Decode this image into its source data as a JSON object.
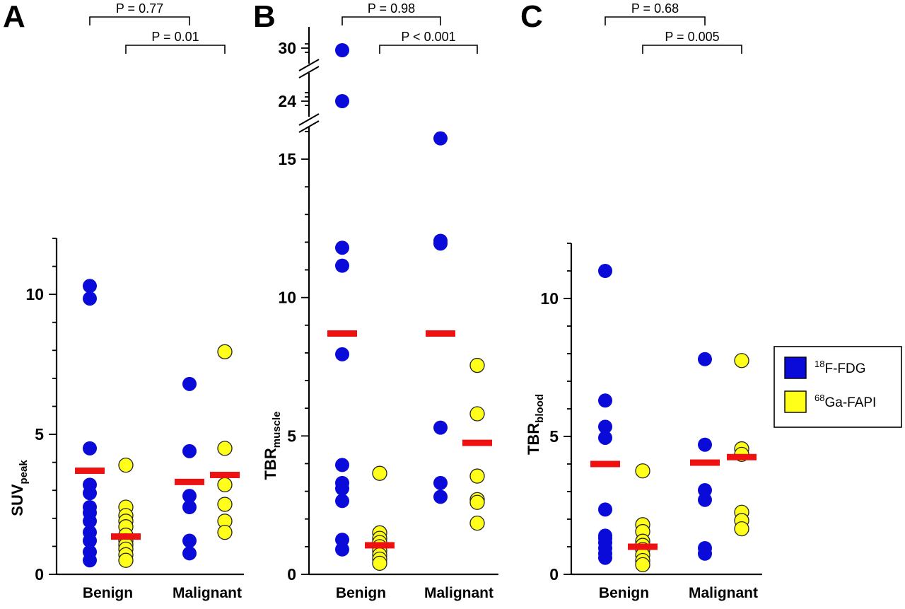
{
  "colors": {
    "fdg": "#0b0bd9",
    "fapi": "#ffff1a",
    "median": "#ee1111",
    "axis": "#000000"
  },
  "legend": {
    "placement": "right",
    "items": [
      {
        "iso": "18",
        "label": "F-FDG",
        "color": "#0b0bd9"
      },
      {
        "iso": "68",
        "label": "Ga-FAPI",
        "color": "#ffff1a"
      }
    ]
  },
  "chart_data": [
    {
      "type": "scatter",
      "panel": "A",
      "ylabel_main": "SUV",
      "ylabel_sub": "peak",
      "ylim": [
        0,
        12
      ],
      "yticks": [
        "0",
        "5",
        "10"
      ],
      "categories": [
        "Benign",
        "Malignant"
      ],
      "series": [
        {
          "name": "18F-FDG",
          "group": "Benign",
          "values": [
            10.3,
            9.85,
            4.5,
            3.2,
            2.9,
            2.4,
            2.2,
            1.9,
            1.5,
            1.2,
            0.8,
            0.5
          ],
          "median": 3.7
        },
        {
          "name": "68Ga-FAPI",
          "group": "Benign",
          "values": [
            3.9,
            2.4,
            2.1,
            1.9,
            1.7,
            1.4,
            1.2,
            1.05,
            0.9,
            0.7,
            0.5
          ],
          "median": 1.35
        },
        {
          "name": "18F-FDG",
          "group": "Malignant",
          "values": [
            6.8,
            4.4,
            2.8,
            2.4,
            1.2,
            0.75
          ],
          "median": 3.3
        },
        {
          "name": "68Ga-FAPI",
          "group": "Malignant",
          "values": [
            7.95,
            4.5,
            3.2,
            2.5,
            1.9,
            1.5
          ],
          "median": 3.55
        }
      ],
      "pvalues": [
        {
          "label": "P = 0.77",
          "from": "Benign 18F-FDG",
          "to": "Malignant 18F-FDG"
        },
        {
          "label": "P = 0.01",
          "from": "Benign 68Ga-FAPI",
          "to": "Malignant 68Ga-FAPI"
        }
      ]
    },
    {
      "type": "scatter",
      "panel": "B",
      "ylabel_main": "TBR",
      "ylabel_sub": "muscle",
      "ylim": [
        0,
        16.5
      ],
      "yticks": [
        "0",
        "5",
        "10",
        "15"
      ],
      "axis_break": {
        "upper_ticks": [
          "24",
          "30"
        ]
      },
      "categories": [
        "Benign",
        "Malignant"
      ],
      "series": [
        {
          "name": "18F-FDG",
          "group": "Benign",
          "values": [
            29.5,
            24,
            11.8,
            11.15,
            7.95,
            3.95,
            3.3,
            3.1,
            2.65,
            1.25,
            0.9
          ],
          "median": 8.7
        },
        {
          "name": "68Ga-FAPI",
          "group": "Benign",
          "values": [
            3.65,
            1.5,
            1.3,
            1.15,
            1.0,
            0.85,
            0.7,
            0.55,
            0.4
          ],
          "median": 1.05
        },
        {
          "name": "18F-FDG",
          "group": "Malignant",
          "values": [
            15.75,
            12.05,
            11.95,
            5.3,
            3.3,
            2.8
          ],
          "median": 8.7
        },
        {
          "name": "68Ga-FAPI",
          "group": "Malignant",
          "values": [
            7.55,
            5.8,
            3.55,
            2.7,
            2.6,
            1.85
          ],
          "median": 4.75
        }
      ],
      "pvalues": [
        {
          "label": "P = 0.98",
          "from": "Benign 18F-FDG",
          "to": "Malignant 18F-FDG"
        },
        {
          "label": "P < 0.001",
          "from": "Benign 68Ga-FAPI",
          "to": "Malignant 68Ga-FAPI"
        }
      ]
    },
    {
      "type": "scatter",
      "panel": "C",
      "ylabel_main": "TBR",
      "ylabel_sub": "blood",
      "ylim": [
        0,
        12
      ],
      "yticks": [
        "0",
        "5",
        "10"
      ],
      "categories": [
        "Benign",
        "Malignant"
      ],
      "series": [
        {
          "name": "18F-FDG",
          "group": "Benign",
          "values": [
            11.0,
            6.3,
            5.35,
            4.95,
            2.35,
            1.4,
            1.3,
            1.15,
            0.95,
            0.75,
            0.6
          ],
          "median": 4.0
        },
        {
          "name": "68Ga-FAPI",
          "group": "Benign",
          "values": [
            3.75,
            1.8,
            1.55,
            1.2,
            1.05,
            0.9,
            0.7,
            0.5,
            0.35
          ],
          "median": 1.0
        },
        {
          "name": "18F-FDG",
          "group": "Malignant",
          "values": [
            7.8,
            4.7,
            3.05,
            2.7,
            0.95,
            0.75
          ],
          "median": 4.05
        },
        {
          "name": "68Ga-FAPI",
          "group": "Malignant",
          "values": [
            7.75,
            4.55,
            4.35,
            2.25,
            1.95,
            1.65
          ],
          "median": 4.25
        }
      ],
      "pvalues": [
        {
          "label": "P = 0.68",
          "from": "Benign 18F-FDG",
          "to": "Malignant 18F-FDG"
        },
        {
          "label": "P = 0.005",
          "from": "Benign 68Ga-FAPI",
          "to": "Malignant 68Ga-FAPI"
        }
      ]
    }
  ]
}
